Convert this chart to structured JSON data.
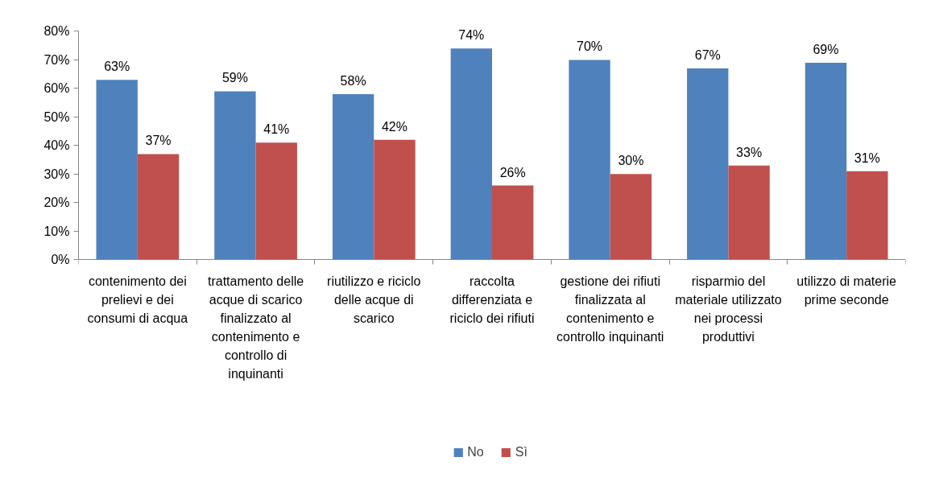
{
  "chart_data": {
    "type": "bar",
    "categories": [
      "contenimento dei prelievi e dei consumi di acqua",
      "trattamento delle acque di scarico finalizzato al contenimento e controllo di inquinanti",
      "riutilizzo e riciclo delle acque di scarico",
      "raccolta differenziata e riciclo dei rifiuti",
      "gestione dei rifiuti finalizzata al contenimento e controllo inquinanti",
      "risparmio del materiale utilizzato nei processi produttivi",
      "utilizzo di materie prime seconde"
    ],
    "series": [
      {
        "name": "No",
        "color": "#4f81bd",
        "values": [
          63,
          59,
          58,
          74,
          70,
          67,
          69
        ],
        "value_labels": [
          "63%",
          "59%",
          "58%",
          "74%",
          "70%",
          "67%",
          "69%"
        ]
      },
      {
        "name": "Sì",
        "color": "#c0504d",
        "values": [
          37,
          41,
          42,
          26,
          30,
          33,
          31
        ],
        "value_labels": [
          "37%",
          "41%",
          "42%",
          "26%",
          "30%",
          "33%",
          "31%"
        ]
      }
    ],
    "ylim": [
      0,
      80
    ],
    "yticks": [
      {
        "value": 0,
        "label": "0%"
      },
      {
        "value": 10,
        "label": "10%"
      },
      {
        "value": 20,
        "label": "20%"
      },
      {
        "value": 30,
        "label": "30%"
      },
      {
        "value": 40,
        "label": "40%"
      },
      {
        "value": 50,
        "label": "50%"
      },
      {
        "value": 60,
        "label": "60%"
      },
      {
        "value": 70,
        "label": "70%"
      },
      {
        "value": 80,
        "label": "80%"
      }
    ],
    "legend": "bottom"
  }
}
